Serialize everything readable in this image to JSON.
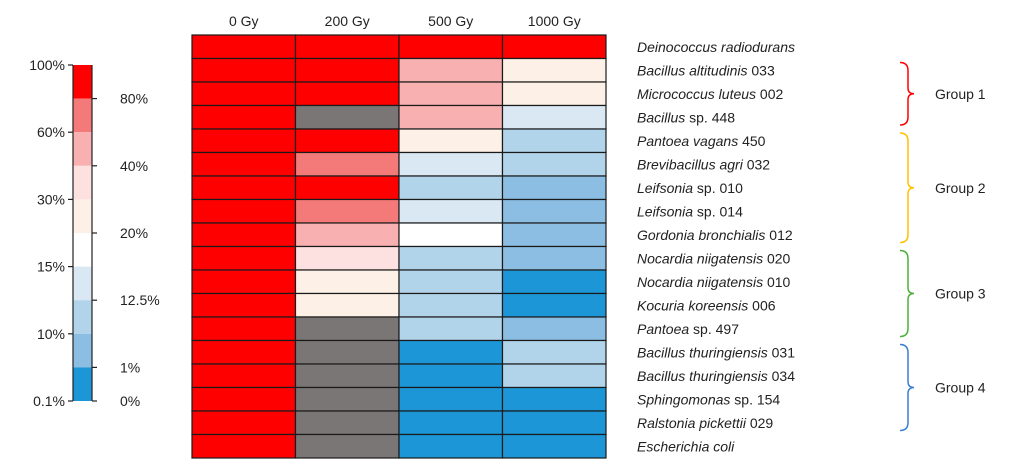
{
  "chart_data": {
    "type": "heatmap",
    "columns": [
      "0 Gy",
      "200 Gy",
      "500 Gy",
      "1000 Gy"
    ],
    "rows": [
      {
        "genus": "Deinococcus radiodurans",
        "suffix": "",
        "values": [
          100,
          100,
          100,
          100
        ]
      },
      {
        "genus": "Bacillus altitudinis",
        "suffix": " 033",
        "values": [
          100,
          100,
          40,
          20
        ]
      },
      {
        "genus": "Micrococcus luteus",
        "suffix": " 002",
        "values": [
          100,
          100,
          40,
          20
        ]
      },
      {
        "genus": "Bacillus",
        "suffix": " sp. 448",
        "values": [
          100,
          null,
          40,
          10
        ]
      },
      {
        "genus": "Pantoea vagans",
        "suffix": " 450",
        "values": [
          100,
          100,
          20,
          1
        ]
      },
      {
        "genus": "Brevibacillus agri",
        "suffix": " 032",
        "values": [
          100,
          60,
          10,
          1
        ]
      },
      {
        "genus": "Leifsonia",
        "suffix": " sp. 010",
        "values": [
          100,
          100,
          1,
          0.1
        ]
      },
      {
        "genus": "Leifsonia",
        "suffix": " sp. 014",
        "values": [
          100,
          60,
          10,
          0.1
        ]
      },
      {
        "genus": "Gordonia bronchialis",
        "suffix": " 012",
        "values": [
          100,
          40,
          12.5,
          0.1
        ]
      },
      {
        "genus": "Nocardia niigatensis",
        "suffix": " 020",
        "values": [
          100,
          30,
          1,
          0.1
        ]
      },
      {
        "genus": "Nocardia niigatensis",
        "suffix": " 010",
        "values": [
          100,
          20,
          1,
          0
        ]
      },
      {
        "genus": "Kocuria koreensis",
        "suffix": " 006",
        "values": [
          100,
          20,
          1,
          0
        ]
      },
      {
        "genus": "Pantoea",
        "suffix": " sp. 497",
        "values": [
          100,
          null,
          1,
          0.1
        ]
      },
      {
        "genus": "Bacillus thuringiensis",
        "suffix": " 031",
        "values": [
          100,
          null,
          0,
          1
        ]
      },
      {
        "genus": "Bacillus thuringiensis",
        "suffix": " 034",
        "values": [
          100,
          null,
          0,
          1
        ]
      },
      {
        "genus": "Sphingomonas",
        "suffix": " sp. 154",
        "values": [
          100,
          null,
          0,
          0
        ]
      },
      {
        "genus": "Ralstonia pickettii",
        "suffix": " 029",
        "values": [
          100,
          null,
          0,
          0
        ]
      },
      {
        "genus": "Escherichia coli",
        "suffix": "",
        "values": [
          100,
          null,
          0,
          0
        ]
      }
    ],
    "legend": {
      "colors": [
        "#ff0000",
        "#f47a7a",
        "#f8b0b0",
        "#fde0e0",
        "#fdf0e6",
        "#ffffff",
        "#dae8f4",
        "#b2d4ea",
        "#8cbde3",
        "#1c96d6"
      ],
      "left_ticks": [
        "100%",
        "60%",
        "30%",
        "15%",
        "10%",
        "0.1%"
      ],
      "right_ticks": [
        "80%",
        "40%",
        "20%",
        "12.5%",
        "1%",
        "0%"
      ]
    },
    "groups": [
      {
        "name": "Group 1",
        "color": "#ff0000",
        "first_row": 1,
        "last_row": 3
      },
      {
        "name": "Group 2",
        "color": "#ffc000",
        "first_row": 4,
        "last_row": 8
      },
      {
        "name": "Group 3",
        "color": "#4daf3a",
        "first_row": 9,
        "last_row": 12
      },
      {
        "name": "Group 4",
        "color": "#3a7fd0",
        "first_row": 13,
        "last_row": 16
      }
    ],
    "no_data_color": "#7a7676"
  }
}
